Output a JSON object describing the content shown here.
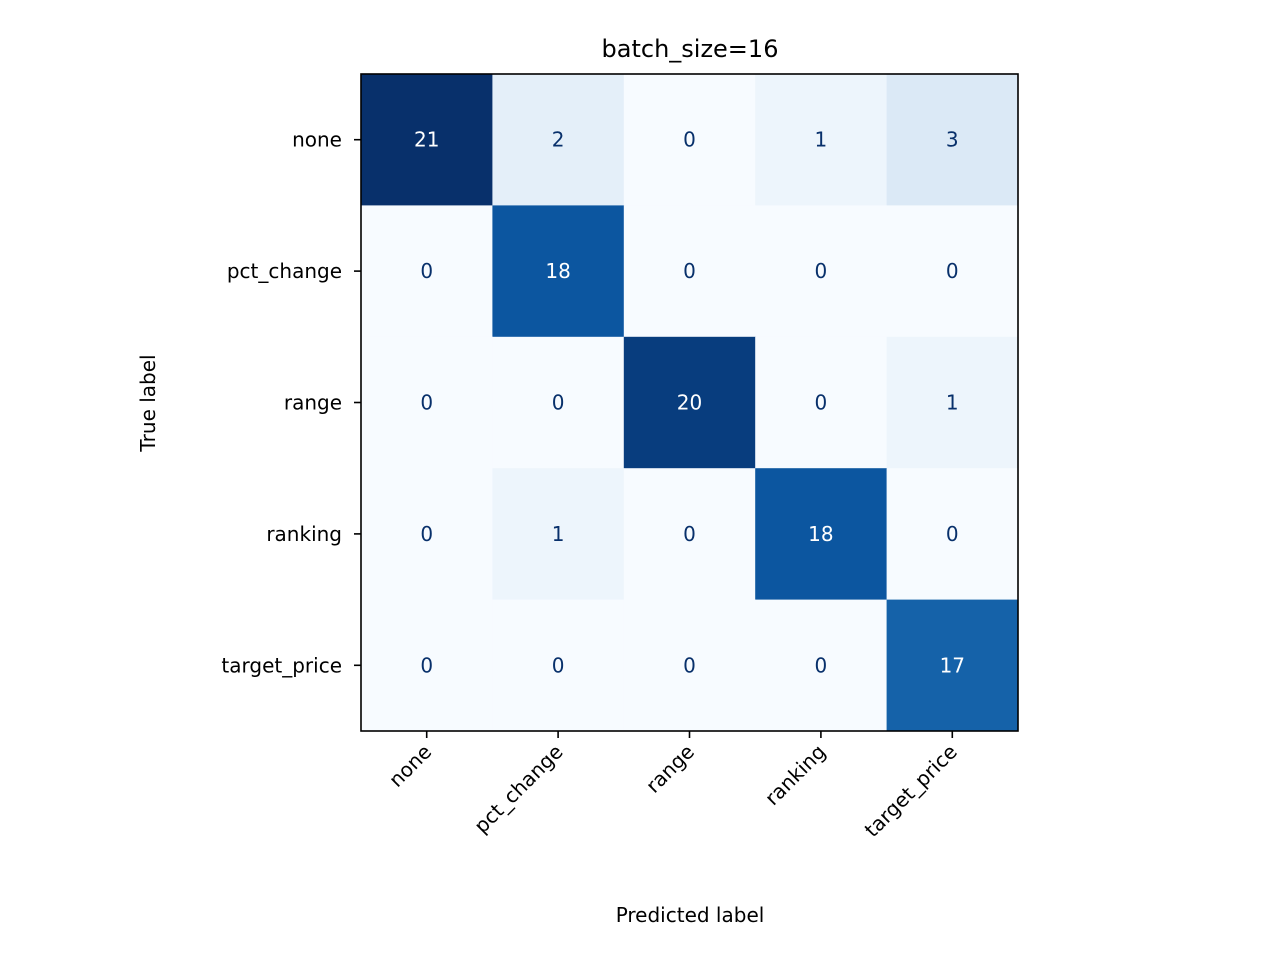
{
  "chart_data": {
    "type": "heatmap",
    "title": "batch_size=16",
    "xlabel": "Predicted label",
    "ylabel": "True label",
    "x_categories": [
      "none",
      "pct_change",
      "range",
      "ranking",
      "target_price"
    ],
    "y_categories": [
      "none",
      "pct_change",
      "range",
      "ranking",
      "target_price"
    ],
    "values": [
      [
        21,
        2,
        0,
        1,
        3
      ],
      [
        0,
        18,
        0,
        0,
        0
      ],
      [
        0,
        0,
        20,
        0,
        1
      ],
      [
        0,
        1,
        0,
        18,
        0
      ],
      [
        0,
        0,
        0,
        0,
        17
      ]
    ],
    "colormap": "Blues",
    "value_range": [
      0,
      21
    ],
    "grid": false,
    "colorbar": false
  }
}
